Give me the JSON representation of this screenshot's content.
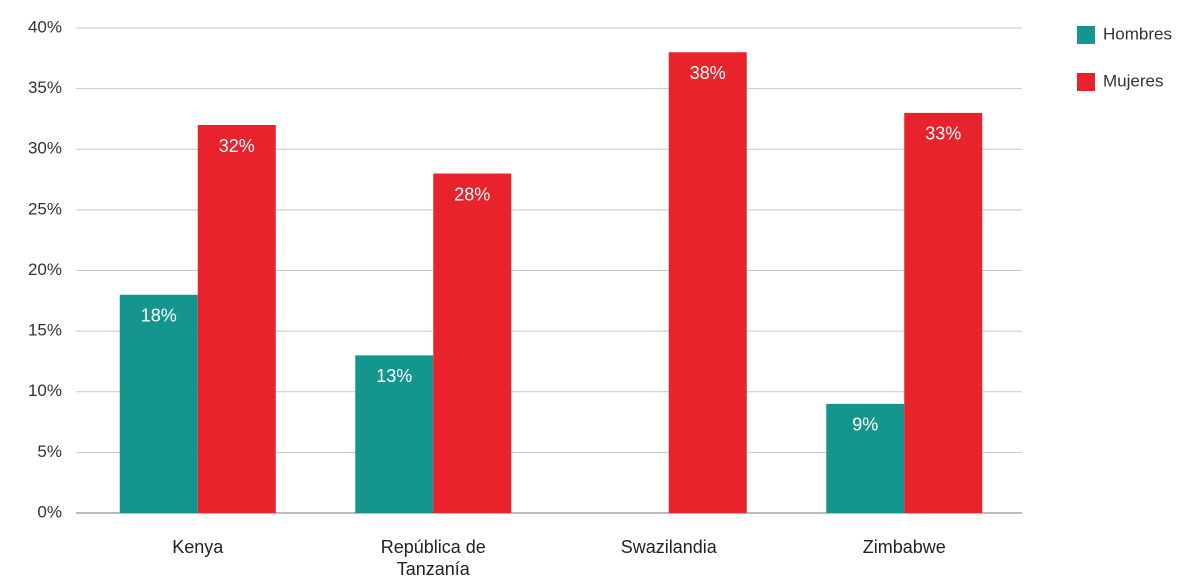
{
  "chart_data": {
    "type": "bar",
    "categories": [
      "Kenya",
      "República de Tanzanía",
      "Swazilandia",
      "Zimbabwe"
    ],
    "series": [
      {
        "name": "Hombres",
        "color": "#14968f",
        "values": [
          18,
          13,
          null,
          9
        ],
        "value_labels": [
          "18%",
          "13%",
          null,
          "9%"
        ]
      },
      {
        "name": "Mujeres",
        "color": "#e8232b",
        "values": [
          32,
          28,
          38,
          33
        ],
        "value_labels": [
          "32%",
          "28%",
          "38%",
          "33%"
        ]
      }
    ],
    "ylim": [
      0,
      40
    ],
    "yticks": [
      {
        "value": 0,
        "label": "0%"
      },
      {
        "value": 5,
        "label": "5%"
      },
      {
        "value": 10,
        "label": "10%"
      },
      {
        "value": 15,
        "label": "15%"
      },
      {
        "value": 20,
        "label": "20%"
      },
      {
        "value": 25,
        "label": "25%"
      },
      {
        "value": 30,
        "label": "30%"
      },
      {
        "value": 35,
        "label": "35%"
      },
      {
        "value": 40,
        "label": "40%"
      }
    ],
    "grid": true,
    "legend": "top-right"
  }
}
